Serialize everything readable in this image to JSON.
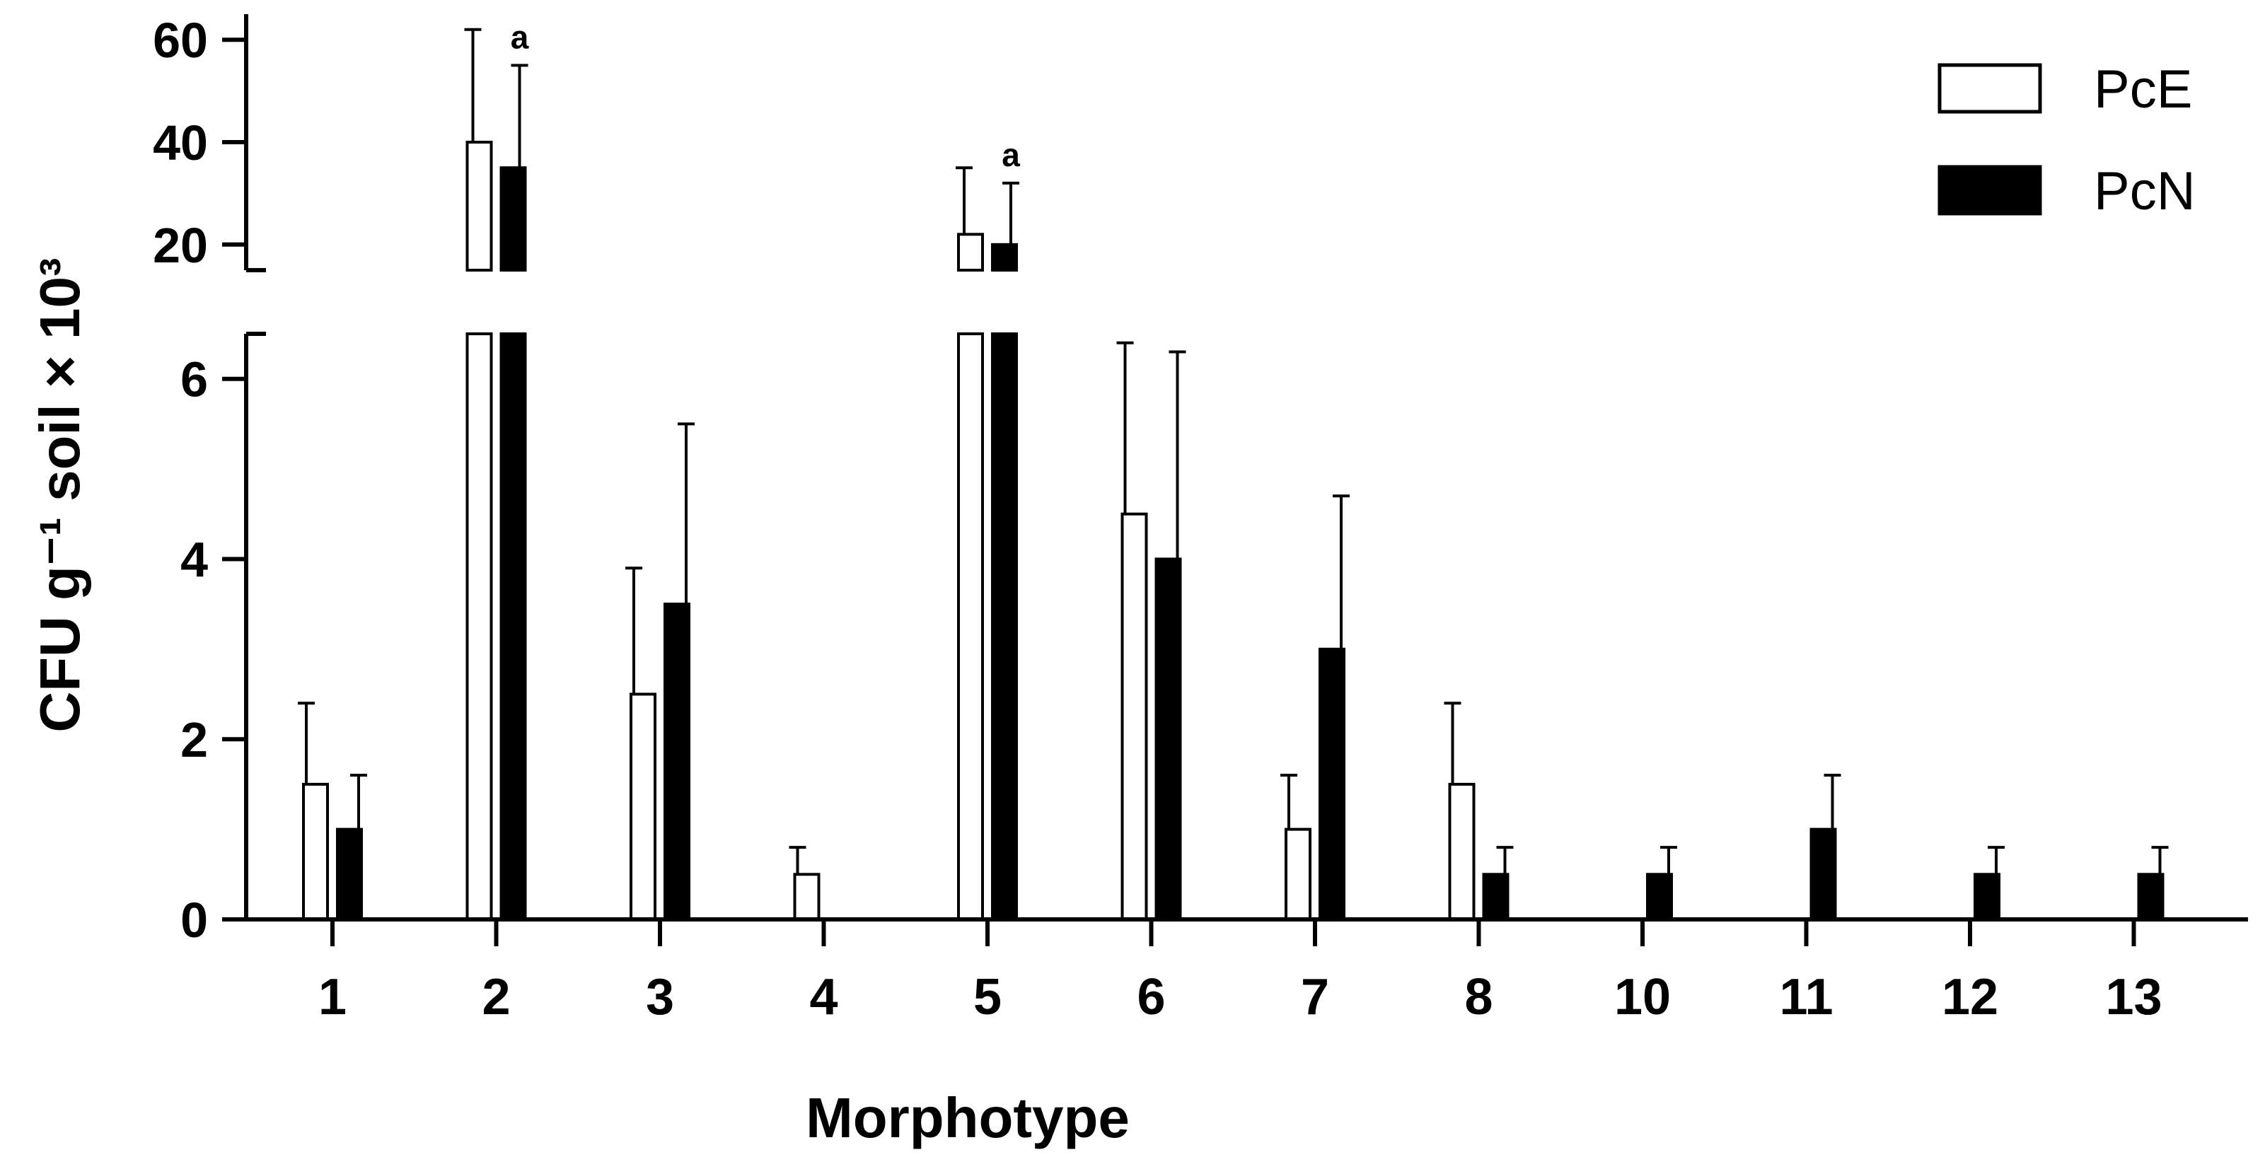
{
  "chart_data": {
    "type": "bar",
    "xlabel": "Morphotype",
    "ylabel": "CFU g⁻¹ soil × 10³",
    "categories": [
      "1",
      "2",
      "3",
      "4",
      "5",
      "6",
      "7",
      "8",
      "10",
      "11",
      "12",
      "13"
    ],
    "axis_break": true,
    "lower_segment": {
      "ylim": [
        0,
        6.5
      ],
      "ticks": [
        "0",
        "2",
        "4",
        "6"
      ]
    },
    "upper_segment": {
      "ylim": [
        15,
        65
      ],
      "ticks": [
        "20",
        "40",
        "60"
      ]
    },
    "legend": {
      "placement": "top-right"
    },
    "series": [
      {
        "name": "PcE",
        "fill": "#ffffff",
        "values": [
          1.5,
          40,
          2.5,
          0.5,
          22,
          4.5,
          1.0,
          1.5,
          0,
          0,
          0,
          0
        ],
        "error_up": [
          0.9,
          22,
          1.4,
          0.3,
          13,
          1.9,
          0.6,
          0.9,
          0,
          0,
          0,
          0
        ]
      },
      {
        "name": "PcN",
        "fill": "#000000",
        "values": [
          1.0,
          35,
          3.5,
          0,
          20,
          4.0,
          3.0,
          0.5,
          0.5,
          1.0,
          0.5,
          0.5
        ],
        "error_up": [
          0.6,
          20,
          2.0,
          0,
          12,
          2.3,
          1.7,
          0.3,
          0.3,
          0.6,
          0.3,
          0.3
        ]
      }
    ],
    "annotations": [
      {
        "category": "2",
        "series": "PcN",
        "text": "a"
      },
      {
        "category": "5",
        "series": "PcN",
        "text": "a"
      }
    ]
  }
}
